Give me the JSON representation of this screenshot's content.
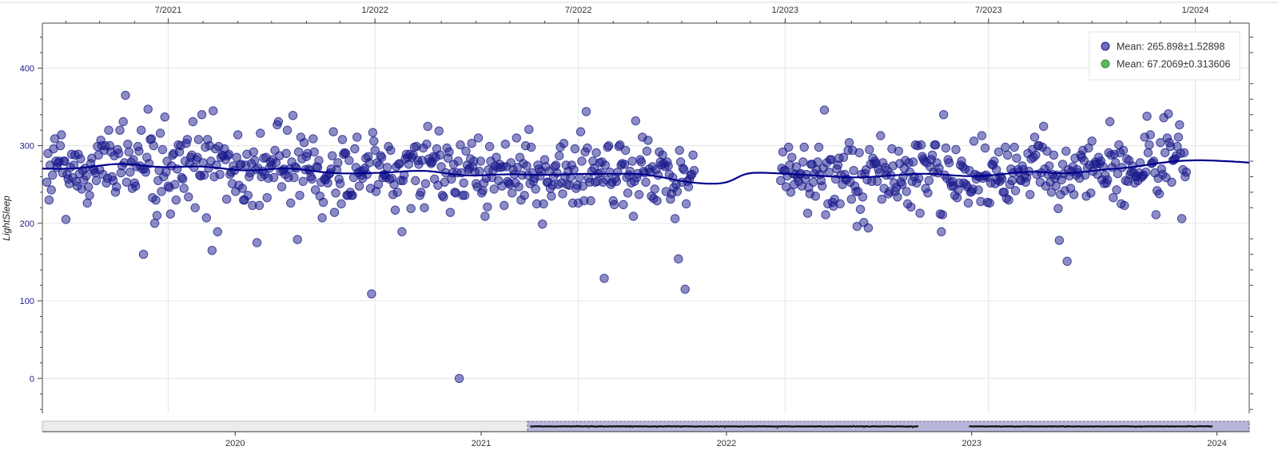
{
  "chart_data": {
    "type": "scatter",
    "ylabel": "LightSleep",
    "y_ticks": [
      0,
      100,
      200,
      300,
      400
    ],
    "ylim": [
      -45,
      458
    ],
    "x_range": [
      "2021-03-11",
      "2024-02-18"
    ],
    "top_axis_ticks": [
      "7/2021",
      "1/2022",
      "7/2022",
      "1/2023",
      "7/2023",
      "1/2024"
    ],
    "grid": true,
    "legend_position": "top-right",
    "legend": [
      {
        "label": "Mean: 265.898±1.52898",
        "color": "#6b6bbf",
        "stroke": "#1a1a8c"
      },
      {
        "label": "Mean: 67.2069±0.313606",
        "color": "#5cb85c",
        "stroke": "#3d8b3d"
      }
    ],
    "series": [
      {
        "marker_color": "#1a1a8c",
        "trend_color": "#00008b",
        "x_start": "2021-03-15",
        "y_step_days": 1,
        "y": [
          253,
          290,
          230,
          275,
          243,
          262,
          296,
          309,
          280,
          272,
          278,
          280,
          300,
          314,
          265,
          280,
          280,
          205,
          263,
          257,
          251,
          272,
          289,
          259,
          275,
          288,
          254,
          248,
          289,
          264,
          283,
          244,
          268,
          256,
          271,
          261,
          226,
          247,
          236,
          277,
          284,
          270,
          268,
          265,
          255,
          299,
          288,
          269,
          307,
          300,
          263,
          294,
          300,
          252,
          258,
          320,
          300,
          292,
          260,
          255,
          287,
          240,
          247,
          295,
          290,
          320,
          265,
          274,
          331,
          278,
          365,
          253,
          302,
          292,
          266,
          279,
          245,
          282,
          252,
          248,
          273,
          299,
          293,
          274,
          320,
          270,
          160,
          270,
          266,
          285,
          347,
          277,
          308,
          309,
          233,
          300,
          200,
          230,
          210,
          255,
          268,
          316,
          241,
          295,
          260,
          337,
          266,
          280,
          248,
          246,
          212,
          274,
          288,
          290,
          250,
          230,
          270,
          301,
          292,
          300,
          259,
          257,
          245,
          280,
          303,
          308,
          234,
          277,
          285,
          288,
          331,
          272,
          220,
          282,
          285,
          308,
          262,
          261,
          340,
          278,
          262,
          298,
          207,
          308,
          271,
          300,
          280,
          165,
          345,
          260,
          296,
          275,
          189,
          299,
          263,
          285,
          288,
          287,
          296,
          282,
          231,
          287,
          289,
          263,
          266,
          251,
          274,
          268,
          241,
          285,
          314,
          249,
          275,
          276,
          245,
          230,
          230,
          275,
          289,
          236,
          260,
          265,
          277,
          223,
          292,
          281,
          269,
          175,
          271,
          223,
          316,
          260,
          267,
          284,
          263,
          285,
          233,
          258,
          271,
          279,
          275,
          282,
          259,
          294,
          278,
          327,
          331,
          287,
          267,
          247,
          268,
          270,
          263,
          290,
          320,
          259,
          270,
          226,
          279,
          339,
          259,
          273,
          271,
          179,
          292,
          236,
          311,
          283,
          254,
          304,
          269,
          286,
          290,
          270,
          268,
          260,
          257,
          309,
          292,
          243,
          273,
          272,
          281,
          235,
          253,
          207,
          227,
          257,
          256,
          261,
          252,
          263,
          265,
          270,
          287,
          318,
          214,
          239,
          269,
          278,
          257,
          251,
          225,
          308,
          289,
          291,
          290,
          236,
          236,
          281,
          240,
          236,
          236,
          259,
          296,
          272,
          311,
          265,
          248,
          267,
          262,
          258,
          268,
          271,
          284,
          263,
          286,
          278,
          245,
          109,
          317,
          306,
          294,
          241,
          278,
          250,
          275,
          287,
          285,
          259,
          263,
          262,
          259,
          272,
          299,
          257,
          294,
          258,
          237,
          250,
          217,
          273,
          240,
          276,
          277,
          255,
          189,
          255,
          262,
          283,
          289,
          285,
          276,
          289,
          219,
          285,
          288,
          298,
          255,
          299,
          281,
          276,
          236,
          240,
          281,
          297,
          220,
          251,
          302,
          325,
          283,
          279,
          277,
          279,
          286,
          257,
          285,
          296,
          249,
          319,
          288,
          273,
          236,
          234,
          253,
          265,
          297,
          284,
          292,
          214,
          257,
          265,
          276,
          240,
          239,
          265,
          280,
          0,
          301,
          265,
          236,
          252,
          236,
          293,
          275,
          269,
          271,
          283,
          303,
          273,
          280,
          266,
          251,
          247,
          310,
          267,
          280,
          239,
          242,
          252,
          209,
          258,
          221,
          269,
          299,
          280,
          259,
          268,
          244,
          274,
          285,
          272,
          255,
          276,
          272,
          248,
          273,
          223,
          302,
          273,
          254,
          252,
          250,
          278,
          239,
          269,
          263,
          252,
          310,
          272,
          247,
          285,
          230,
          262,
          277,
          236,
          300,
          274,
          262,
          321,
          251,
          298,
          265,
          254,
          258,
          244,
          225,
          275,
          270,
          261,
          267,
          199,
          225,
          282,
          273,
          253,
          253,
          267,
          245,
          235,
          249,
          260,
          273,
          275,
          265,
          250,
          287,
          298,
          252,
          238,
          303,
          260,
          275,
          250,
          267,
          249,
          259,
          275,
          226,
          269,
          296,
          245,
          249,
          226,
          259,
          318,
          280,
          248,
          229,
          292,
          344,
          297,
          258,
          253,
          229,
          267,
          280,
          271,
          253,
          291,
          254,
          264,
          278,
          265,
          279,
          253,
          129,
          275,
          256,
          298,
          300,
          266,
          250,
          253,
          229,
          224,
          258,
          254,
          266,
          299,
          301,
          275,
          277,
          224,
          276,
          294,
          259,
          239,
          262,
          267,
          252,
          280,
          209,
          254,
          332,
          259,
          264,
          237,
          282,
          279,
          311,
          267,
          265,
          253,
          293,
          307,
          270,
          266,
          235,
          273,
          232,
          244,
          269,
          229,
          262,
          292,
          279,
          275,
          288,
          277,
          273,
          241,
          279,
          274,
          263,
          231,
          238,
          259,
          246,
          206,
          250,
          241,
          154,
          294,
          279,
          253,
          271,
          269,
          115,
          225,
          254,
          247,
          257,
          262,
          263,
          288,
          268,
          255,
          271,
          292,
          268,
          268,
          247,
          261,
          298,
          275,
          240,
          285,
          264,
          250,
          263,
          273,
          259,
          254,
          263,
          264,
          248,
          279,
          298,
          257,
          263,
          213,
          246,
          238,
          276,
          276,
          253,
          264,
          235,
          269,
          279,
          298,
          263,
          255,
          248,
          271,
          346,
          211,
          278,
          225,
          266,
          282,
          282,
          227,
          222,
          231,
          257,
          270,
          275,
          284,
          225,
          262,
          250,
          285,
          263,
          256,
          257,
          294,
          304,
          253,
          231,
          294,
          268,
          248,
          241,
          196,
          241,
          291,
          218,
          263,
          234,
          201,
          264,
          269,
          256,
          194,
          295,
          276,
          254,
          284,
          277,
          280,
          277,
          254,
          270,
          265,
          313,
          231,
          278,
          245,
          272,
          262,
          268,
          238,
          241,
          262,
          296,
          274,
          252,
          241,
          246,
          234,
          293,
          277,
          253,
          250,
          260,
          271,
          281,
          241,
          225,
          278,
          266,
          221,
          254,
          279,
          260,
          301,
          252,
          300,
          258,
          213,
          301,
          286,
          283,
          280,
          245,
          278,
          239,
          255,
          273,
          282,
          288,
          266,
          301,
          301,
          278,
          265,
          271,
          212,
          189,
          211,
          340,
          262,
          297,
          258,
          282,
          278,
          253,
          248,
          254,
          248,
          236,
          295,
          233,
          243,
          252,
          275,
          280,
          273,
          252,
          270,
          250,
          247,
          226,
          268,
          240,
          241,
          244,
          306,
          263,
          257,
          261,
          243,
          260,
          228,
          313,
          258,
          261,
          297,
          262,
          227,
          259,
          226,
          252,
          276,
          275,
          280,
          251,
          269,
          256,
          292,
          254,
          260,
          257,
          240,
          240,
          298,
          232,
          288,
          230,
          250,
          270,
          255,
          265,
          298,
          242,
          284,
          269,
          266,
          256,
          255,
          274,
          269,
          261,
          253,
          259,
          290,
          267,
          237,
          283,
          295,
          285,
          311,
          288,
          263,
          300,
          300,
          253,
          265,
          298,
          325,
          270,
          248,
          293,
          263,
          274,
          253,
          240,
          263,
          288,
          258,
          248,
          262,
          219,
          178,
          237,
          256,
          276,
          264,
          242,
          293,
          151,
          269,
          261,
          245,
          267,
          273,
          237,
          284,
          262,
          269,
          265,
          258,
          288,
          285,
          294,
          281,
          262,
          235,
          271,
          297,
          275,
          239,
          306,
          267,
          276,
          279,
          276,
          263,
          285,
          277,
          280,
          256,
          273,
          251,
          262,
          252,
          256,
          291,
          331,
          288,
          272,
          233,
          289,
          278,
          243,
          264,
          301,
          291,
          225,
          272,
          294,
          223,
          255,
          283,
          254,
          281,
          263,
          266,
          274,
          265,
          252,
          260,
          261,
          255,
          265,
          278,
          259,
          261,
          262,
          311,
          266,
          338,
          291,
          301,
          314,
          277,
          278,
          280,
          265,
          211,
          242,
          258,
          238,
          304,
          270,
          263,
          336,
          291,
          259,
          310,
          341,
          304,
          299,
          253,
          281,
          282,
          283,
          287,
          299,
          311,
          327,
          290,
          206,
          269,
          291,
          260,
          266
        ]
      }
    ],
    "navigator": {
      "x_ticks": [
        "2020",
        "2021",
        "2022",
        "2023",
        "2024"
      ],
      "x_range": [
        "2019-03-20",
        "2024-02-18"
      ],
      "selection": [
        "2021-03-11",
        "2024-02-18"
      ],
      "selection_color": "#a9a9d6"
    }
  }
}
